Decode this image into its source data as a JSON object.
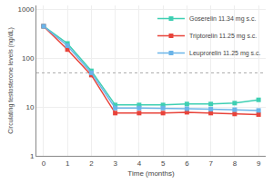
{
  "chart_data": {
    "type": "line",
    "x": [
      0,
      1,
      2,
      3,
      4,
      5,
      6,
      7,
      8,
      9
    ],
    "series": [
      {
        "name": "Goserelin 11.34 mg s.c.",
        "color": "#3ecfb2",
        "marker": "square",
        "line_style": "solid",
        "values": [
          450,
          200,
          55,
          11,
          11,
          11,
          11.5,
          11.5,
          12,
          14
        ]
      },
      {
        "name": "Triptorelin 11.25 mg s.c.",
        "color": "#e8433a",
        "marker": "square",
        "line_style": "solid",
        "values": [
          450,
          150,
          45,
          7.5,
          7.5,
          7.5,
          7.8,
          7.5,
          7.2,
          7.0
        ]
      },
      {
        "name": "Leuprorelin 11.25 mg s.c.",
        "color": "#6ab4e8",
        "marker": "square",
        "line_style": "solid",
        "values": [
          450,
          180,
          50,
          9.5,
          9.5,
          9.5,
          9.2,
          9.0,
          8.8,
          8.5
        ]
      }
    ],
    "threshold": {
      "value": 50,
      "color": "#aaaaaa",
      "line_style": "dotted"
    },
    "x_label": "Time (months)",
    "y_label": "Circulating testosterone levels (ng/dL)",
    "xlim": [
      -0.3,
      9.3
    ],
    "xticks": [
      0,
      1,
      2,
      3,
      4,
      5,
      6,
      7,
      8,
      9
    ],
    "ylim": [
      1,
      1200
    ],
    "yticks": [
      1,
      10,
      100,
      1000
    ],
    "log": "y",
    "grid": true,
    "legend": "upper right"
  }
}
